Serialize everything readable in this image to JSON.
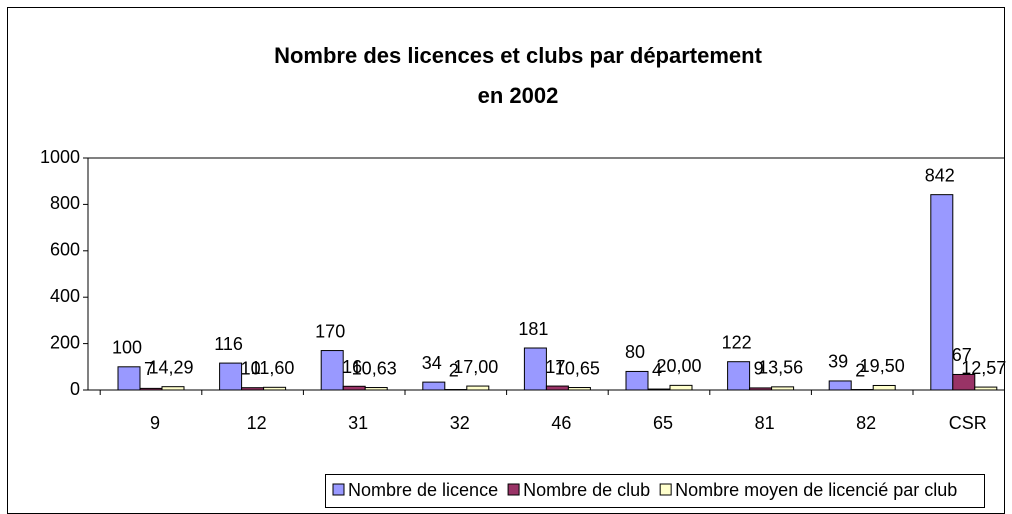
{
  "chart_data": {
    "type": "bar",
    "title": [
      "Nombre des licences et clubs par département",
      "en 2002"
    ],
    "categories": [
      "9",
      "12",
      "31",
      "32",
      "46",
      "65",
      "81",
      "82",
      "CSR"
    ],
    "series": [
      {
        "name": "Nombre de licence",
        "color": "#9999ff",
        "values": [
          100,
          116,
          170,
          34,
          181,
          80,
          122,
          39,
          842
        ]
      },
      {
        "name": "Nombre de club",
        "color": "#993366",
        "values": [
          7,
          10,
          16,
          2,
          17,
          4,
          9,
          2,
          67
        ]
      },
      {
        "name": "Nombre moyen de licencié par club",
        "color": "#ffffcc",
        "values": [
          14.29,
          11.6,
          10.63,
          17,
          10.65,
          20,
          13.56,
          19.5,
          12.57
        ],
        "value_labels": [
          "14,29",
          "11,60",
          "10,63",
          "17,00",
          "10,65",
          "20,00",
          "13,56",
          "19,50",
          "12,57"
        ]
      }
    ],
    "ylim": [
      0,
      1000
    ],
    "yticks": [
      0,
      200,
      400,
      600,
      800,
      1000
    ],
    "grid": false,
    "legend": "bottom"
  }
}
